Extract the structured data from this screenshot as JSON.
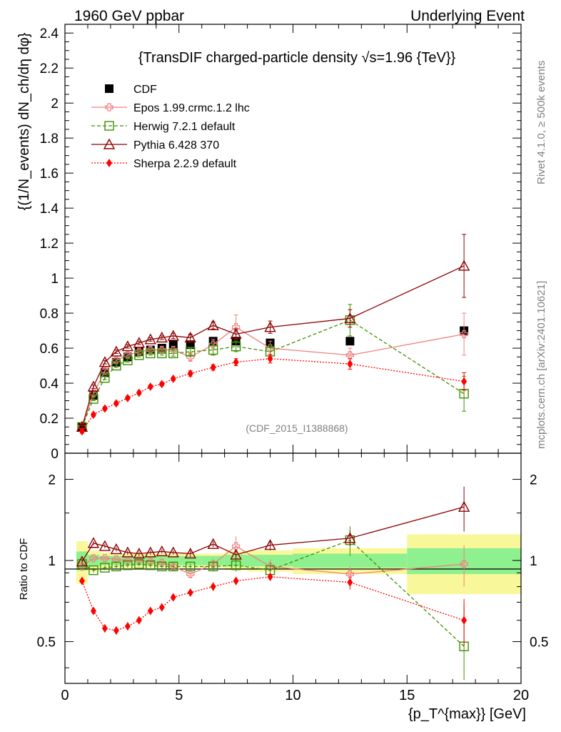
{
  "header": {
    "left": "1960 GeV ppbar",
    "right": "Underlying Event"
  },
  "side": {
    "rivet": "Rivet 4.1.0, ≥ 500k events",
    "mcplots": "mcplots.cern.ch [arXiv:2401.10621]"
  },
  "chart_data": {
    "type": "line",
    "title": "{TransDIF charged-particle density √s=1.96 {TeV}}",
    "analysis_id": "(CDF_2015_I1388868)",
    "xlabel": "{p_T^{max}} [GeV]",
    "ylabel": "{(1/N_events) dN_ch/dη dφ}",
    "ratio_ylabel": "Ratio to CDF",
    "xlim": [
      0,
      20
    ],
    "ylim": [
      0,
      2.45
    ],
    "ratio_ylim": [
      0.35,
      2.5
    ],
    "x_ticks": [
      "0",
      "5",
      "10",
      "15",
      "20"
    ],
    "y_ticks": [
      "0",
      "0.2",
      "0.4",
      "0.6",
      "0.8",
      "1",
      "1.2",
      "1.4",
      "1.6",
      "1.8",
      "2",
      "2.2",
      "2.4"
    ],
    "ratio_ticks": [
      "0.5",
      "1",
      "2"
    ],
    "x": [
      0.75,
      1.25,
      1.75,
      2.25,
      2.75,
      3.25,
      3.75,
      4.25,
      4.75,
      5.5,
      6.5,
      7.5,
      9.0,
      12.5,
      17.5
    ],
    "series": [
      {
        "name": "CDF",
        "color": "#000000",
        "marker": "square-filled",
        "line": "none",
        "values": [
          0.15,
          0.33,
          0.46,
          0.52,
          0.55,
          0.58,
          0.59,
          0.6,
          0.62,
          0.62,
          0.64,
          0.64,
          0.63,
          0.64,
          0.7
        ],
        "errors": [
          0.01,
          0.01,
          0.01,
          0.01,
          0.01,
          0.01,
          0.01,
          0.01,
          0.01,
          0.01,
          0.01,
          0.01,
          0.01,
          0.01,
          0.01
        ]
      },
      {
        "name": "Epos 1.99.crmc.1.2 lhc",
        "color": "#f08080",
        "marker": "cross-open",
        "line": "solid",
        "values": [
          0.15,
          0.34,
          0.47,
          0.53,
          0.56,
          0.58,
          0.59,
          0.59,
          0.59,
          0.55,
          0.62,
          0.72,
          0.6,
          0.56,
          0.68
        ],
        "errors": [
          0.01,
          0.015,
          0.015,
          0.015,
          0.015,
          0.015,
          0.015,
          0.015,
          0.02,
          0.025,
          0.03,
          0.07,
          0.04,
          0.04,
          0.12
        ]
      },
      {
        "name": "Herwig 7.2.1 default",
        "color": "#3f8f00",
        "marker": "square-open",
        "line": "dashed",
        "values": [
          0.15,
          0.31,
          0.43,
          0.5,
          0.53,
          0.56,
          0.57,
          0.57,
          0.57,
          0.58,
          0.59,
          0.61,
          0.58,
          0.76,
          0.34
        ],
        "errors": [
          0.01,
          0.01,
          0.01,
          0.01,
          0.01,
          0.01,
          0.01,
          0.01,
          0.015,
          0.02,
          0.03,
          0.03,
          0.04,
          0.09,
          0.1
        ]
      },
      {
        "name": "Pythia 6.428 370",
        "color": "#8b0000",
        "marker": "triangle-open",
        "line": "solid",
        "values": [
          0.15,
          0.38,
          0.52,
          0.58,
          0.61,
          0.63,
          0.65,
          0.66,
          0.67,
          0.66,
          0.73,
          0.68,
          0.72,
          0.77,
          1.07
        ],
        "errors": [
          0.01,
          0.01,
          0.01,
          0.01,
          0.01,
          0.01,
          0.01,
          0.01,
          0.015,
          0.02,
          0.02,
          0.03,
          0.035,
          0.05,
          0.18
        ]
      },
      {
        "name": "Sherpa 2.2.9 default",
        "color": "#ff0000",
        "marker": "diamond-filled",
        "line": "dotted",
        "values": [
          0.125,
          0.22,
          0.255,
          0.285,
          0.315,
          0.345,
          0.38,
          0.395,
          0.425,
          0.455,
          0.49,
          0.52,
          0.54,
          0.51,
          0.41
        ],
        "errors": [
          0.01,
          0.01,
          0.01,
          0.01,
          0.01,
          0.01,
          0.01,
          0.01,
          0.01,
          0.015,
          0.015,
          0.02,
          0.025,
          0.03,
          0.05
        ]
      }
    ],
    "ratio_series": [
      {
        "name": "Epos 1.99.crmc.1.2 lhc",
        "values": [
          0.95,
          1.02,
          1.02,
          1.01,
          1.0,
          1.0,
          0.99,
          0.98,
          0.95,
          0.89,
          0.97,
          1.13,
          0.95,
          0.89,
          0.97
        ],
        "errors": [
          0.03,
          0.02,
          0.02,
          0.02,
          0.02,
          0.02,
          0.02,
          0.02,
          0.03,
          0.03,
          0.04,
          0.1,
          0.06,
          0.06,
          0.17
        ]
      },
      {
        "name": "Herwig 7.2.1 default",
        "values": [
          0.97,
          0.92,
          0.94,
          0.95,
          0.96,
          0.97,
          0.96,
          0.95,
          0.95,
          0.95,
          0.95,
          0.96,
          0.92,
          1.19,
          0.48
        ],
        "errors": [
          0.02,
          0.02,
          0.02,
          0.02,
          0.02,
          0.02,
          0.02,
          0.02,
          0.02,
          0.02,
          0.04,
          0.05,
          0.06,
          0.15,
          0.2
        ]
      },
      {
        "name": "Pythia 6.428 370",
        "values": [
          0.99,
          1.16,
          1.13,
          1.1,
          1.07,
          1.06,
          1.07,
          1.08,
          1.07,
          1.06,
          1.15,
          1.05,
          1.14,
          1.21,
          1.58
        ],
        "errors": [
          0.02,
          0.02,
          0.02,
          0.02,
          0.02,
          0.02,
          0.02,
          0.02,
          0.02,
          0.03,
          0.03,
          0.04,
          0.05,
          0.08,
          0.3
        ]
      },
      {
        "name": "Sherpa 2.2.9 default",
        "values": [
          0.84,
          0.65,
          0.56,
          0.55,
          0.57,
          0.6,
          0.65,
          0.67,
          0.73,
          0.76,
          0.8,
          0.84,
          0.87,
          0.83,
          0.6
        ],
        "errors": [
          0.02,
          0.02,
          0.02,
          0.02,
          0.02,
          0.02,
          0.02,
          0.02,
          0.02,
          0.02,
          0.03,
          0.03,
          0.03,
          0.05,
          0.12
        ]
      }
    ],
    "ratio_bands": [
      {
        "x0": 0.5,
        "x1": 1.0,
        "inner": 0.08,
        "outer": 0.18
      },
      {
        "x0": 1.0,
        "x1": 1.5,
        "inner": 0.05,
        "outer": 0.09
      },
      {
        "x0": 1.5,
        "x1": 2.0,
        "inner": 0.04,
        "outer": 0.07
      },
      {
        "x0": 2.0,
        "x1": 2.5,
        "inner": 0.04,
        "outer": 0.06
      },
      {
        "x0": 2.5,
        "x1": 3.0,
        "inner": 0.04,
        "outer": 0.06
      },
      {
        "x0": 3.0,
        "x1": 3.5,
        "inner": 0.04,
        "outer": 0.06
      },
      {
        "x0": 3.5,
        "x1": 4.0,
        "inner": 0.04,
        "outer": 0.06
      },
      {
        "x0": 4.0,
        "x1": 4.5,
        "inner": 0.04,
        "outer": 0.06
      },
      {
        "x0": 4.5,
        "x1": 5.0,
        "inner": 0.04,
        "outer": 0.06
      },
      {
        "x0": 5.0,
        "x1": 6.0,
        "inner": 0.04,
        "outer": 0.06
      },
      {
        "x0": 6.0,
        "x1": 7.0,
        "inner": 0.04,
        "outer": 0.06
      },
      {
        "x0": 7.0,
        "x1": 8.0,
        "inner": 0.05,
        "outer": 0.08
      },
      {
        "x0": 8.0,
        "x1": 10.0,
        "inner": 0.05,
        "outer": 0.09
      },
      {
        "x0": 10.0,
        "x1": 15.0,
        "inner": 0.06,
        "outer": 0.11
      },
      {
        "x0": 15.0,
        "x1": 20.0,
        "inner": 0.11,
        "outer": 0.25
      }
    ],
    "band_colors": {
      "inner": "#8ef08e",
      "outer": "#f8f89a"
    },
    "legend_position": "top-left"
  }
}
